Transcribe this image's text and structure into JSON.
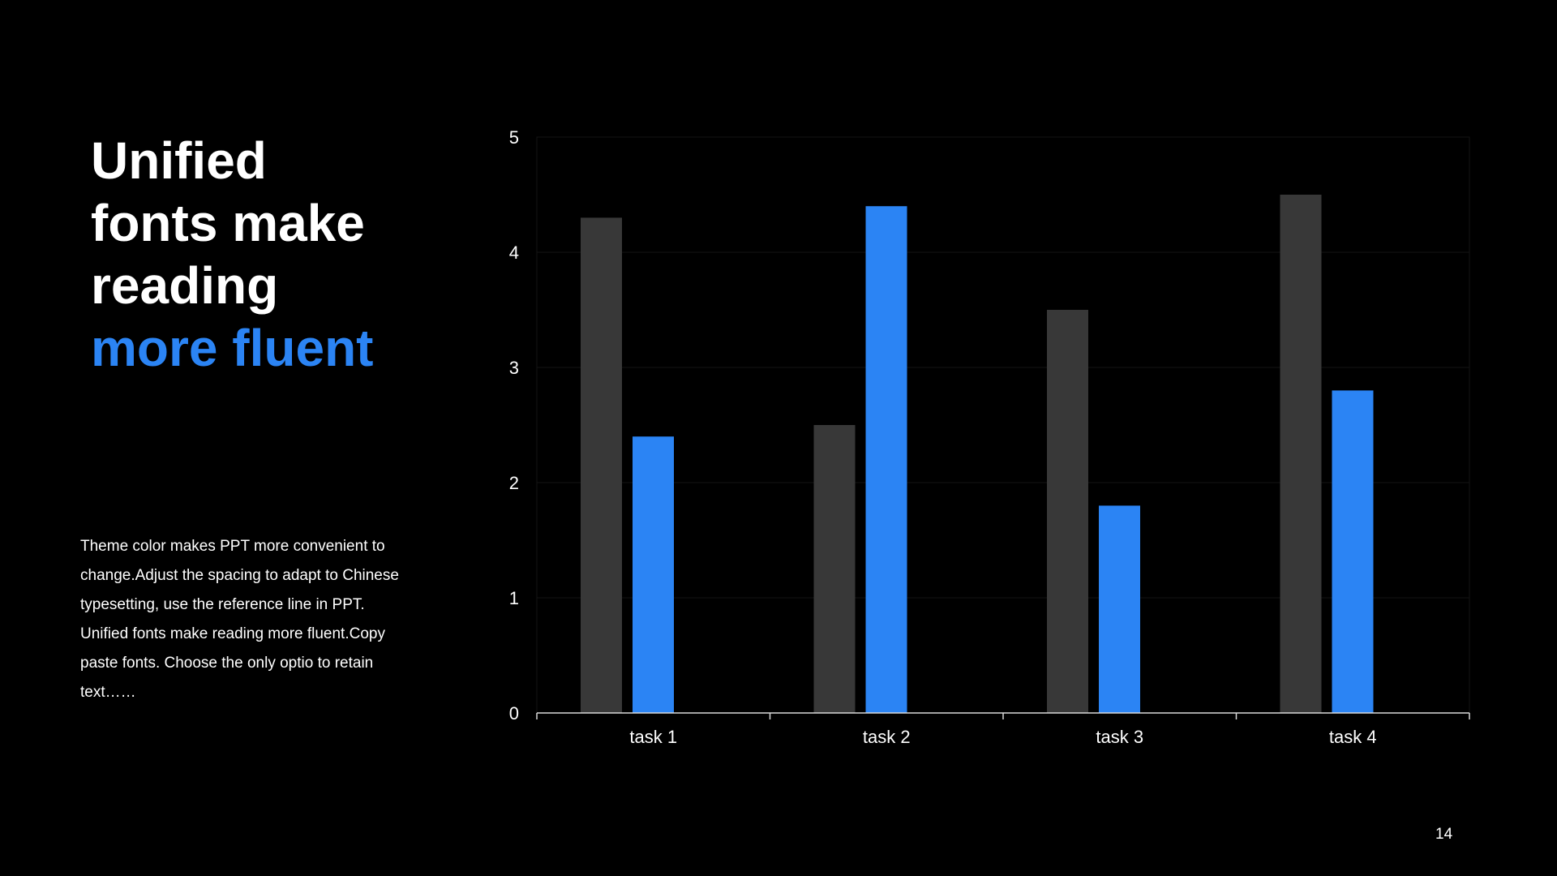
{
  "headline": {
    "lines": [
      "Unified",
      "fonts make",
      "reading"
    ],
    "accent_line": "more fluent"
  },
  "body_text": "Theme  color makes PPT more convenient to change.Adjust the spacing to adapt to Chinese typesetting, use the reference line in PPT. Unified fonts make reading more fluent.Copy paste fonts. Choose the only optio to retain text……",
  "page_number": "14",
  "colors": {
    "background": "#000000",
    "text": "#ffffff",
    "accent": "#2b84f4",
    "series_gray": "#383838"
  },
  "chart_data": {
    "type": "bar",
    "categories": [
      "task 1",
      "task 2",
      "task 3",
      "task 4"
    ],
    "series": [
      {
        "color": "#383838",
        "values": [
          4.3,
          2.5,
          3.5,
          4.5
        ]
      },
      {
        "color": "#2b84f4",
        "values": [
          2.4,
          4.4,
          1.8,
          2.8
        ]
      }
    ],
    "ylim": [
      0,
      5
    ],
    "yticks": [
      "0",
      "1",
      "2",
      "3",
      "4",
      "5"
    ],
    "grid": true,
    "title": "",
    "xlabel": "",
    "ylabel": ""
  }
}
